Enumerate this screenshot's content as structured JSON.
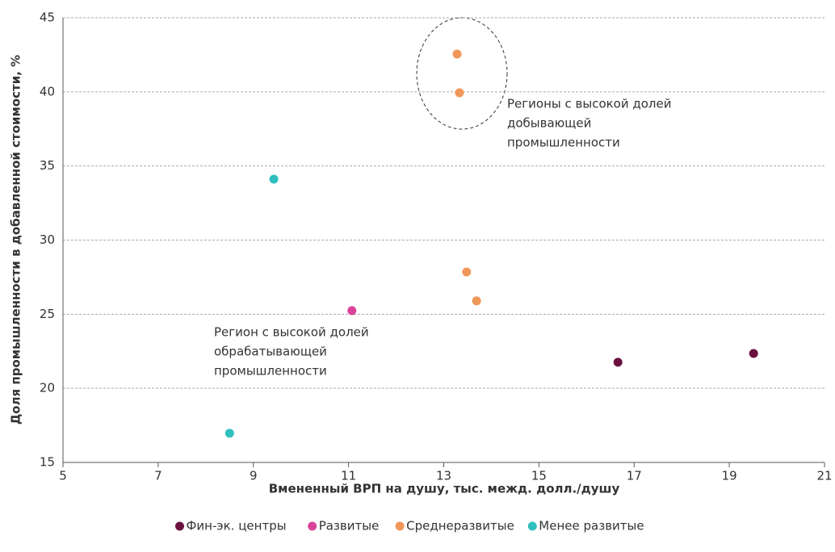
{
  "chart_data": {
    "type": "scatter",
    "x_label": "Вмененный ВРП на душу, тыс. межд. долл./душу",
    "y_label": "Доля промышленности в добавленной стоимости, %",
    "xlim": [
      5,
      21
    ],
    "xticks": [
      5,
      7,
      9,
      11,
      13,
      15,
      17,
      19,
      21
    ],
    "ylim": [
      15,
      45
    ],
    "yticks": [
      15,
      20,
      25,
      30,
      35,
      40,
      45
    ],
    "grid": true,
    "legend": "bottom",
    "series": [
      {
        "name": "Фин-эк. центры",
        "color": "#6b1140",
        "x": [
          16.66,
          19.51
        ],
        "values": [
          21.76,
          22.35
        ]
      },
      {
        "name": "Развитые",
        "color": "#d9449a",
        "x": [
          11.07
        ],
        "values": [
          25.24
        ]
      },
      {
        "name": "Среднеразвитые",
        "color": "#f0975a",
        "x": [
          13.28,
          13.33,
          13.48,
          13.69
        ],
        "values": [
          42.55,
          39.94,
          27.85,
          25.9
        ]
      },
      {
        "name": "Менее развитые",
        "color": "#2fbfbf",
        "x": [
          9.43,
          8.5
        ],
        "values": [
          34.11,
          16.97
        ]
      }
    ],
    "annotations": [
      {
        "lines": [
          "Регионы с высокой долей",
          "добывающей",
          "промышленности"
        ]
      },
      {
        "lines": [
          "Регион с высокой долей",
          "обрабатывающей",
          "промышленности"
        ]
      }
    ]
  }
}
